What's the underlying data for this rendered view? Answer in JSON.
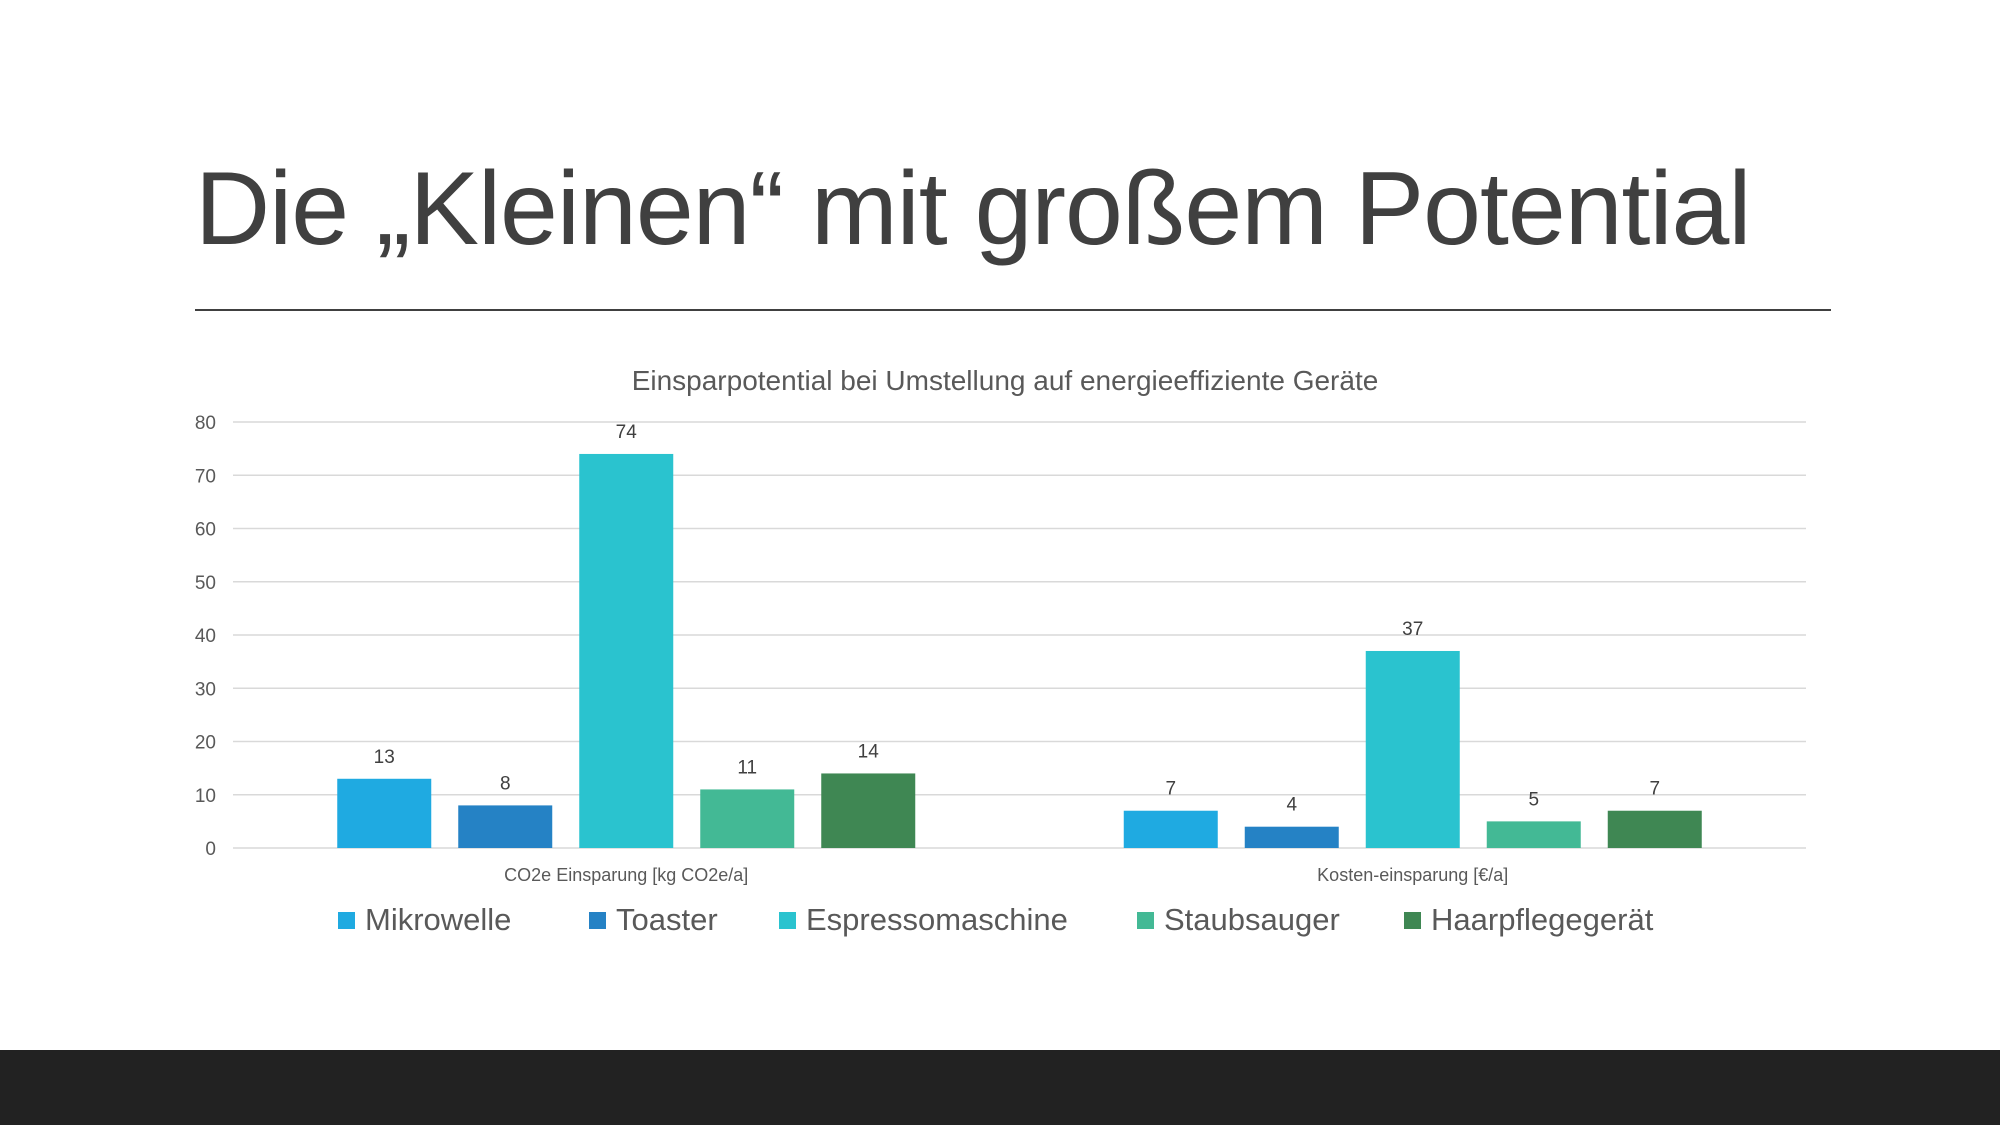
{
  "slide": {
    "title": "Die „Kleinen“ mit großem Potential"
  },
  "chart_data": {
    "type": "bar",
    "title": "Einsparpotential bei Umstellung auf energieeffiziente Geräte",
    "categories": [
      "CO2e Einsparung  [kg CO2e/a]",
      "Kosten-einsparung  [€/a]"
    ],
    "series": [
      {
        "name": "Mikrowelle",
        "values": [
          13,
          7
        ],
        "color": "#1FAAE1"
      },
      {
        "name": "Toaster",
        "values": [
          8,
          4
        ],
        "color": "#2582C5"
      },
      {
        "name": "Espressomaschine",
        "values": [
          74,
          37
        ],
        "color": "#2AC3CF"
      },
      {
        "name": "Staubsauger",
        "values": [
          11,
          5
        ],
        "color": "#43B995"
      },
      {
        "name": "Haarpflegegerät",
        "values": [
          14,
          7
        ],
        "color": "#3F8753"
      }
    ],
    "xlabel": "",
    "ylabel": "",
    "ylim": [
      0,
      80
    ],
    "yticks": [
      "0",
      "10",
      "20",
      "30",
      "40",
      "50",
      "60",
      "70",
      "80"
    ],
    "grid": true,
    "legend_position": "bottom",
    "data_labels": true
  }
}
